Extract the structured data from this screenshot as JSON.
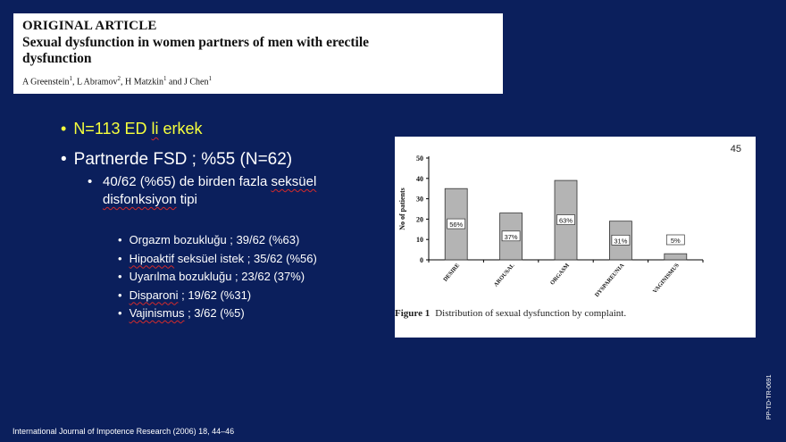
{
  "header": {
    "kicker": "ORIGINAL ARTICLE",
    "title_line1": "Sexual dysfunction in women partners of men with erectile",
    "title_line2": "dysfunction",
    "authors_html": "A Greenstein<sup>1</sup>, L Abramov<sup>2</sup>, H Matzkin<sup>1</sup> and J Chen<sup>1</sup>"
  },
  "bullets": {
    "b1_pre": "N=113 ED ",
    "b1_squig": "li",
    "b1_post": " erkek",
    "b2": "Partnerde FSD ; %55 (N=62)",
    "b3_pre": "40/62 (%65) de birden fazla ",
    "b3_squig1": "seksüel",
    "b3_squig2": "disfonksiyon",
    "b3_post": " tipi",
    "subitems": [
      {
        "squig": "",
        "text": "Orgazm bozukluğu ; 39/62 (%63)"
      },
      {
        "squig": "Hipoaktif",
        "text": " seksüel istek ; 35/62 (%56)"
      },
      {
        "squig": "",
        "text": "Uyarılma bozukluğu ; 23/62 (37%)"
      },
      {
        "squig": "Disparoni",
        "text": " ; 19/62 (%31)"
      },
      {
        "squig": "Vajinismus",
        "text": " ; 3/62 (%5)"
      }
    ]
  },
  "figure": {
    "page_number": "45",
    "caption_label": "Figure 1",
    "caption_text": "Distribution of sexual dysfunction by complaint."
  },
  "chart_data": {
    "type": "bar",
    "categories": [
      "DESIRE",
      "AROUSAL",
      "ORGASM",
      "DYSPAREUNIA",
      "VAGINISMUS"
    ],
    "values": [
      35,
      23,
      39,
      19,
      3
    ],
    "data_labels": [
      "56%",
      "37%",
      "63%",
      "31%",
      "5%"
    ],
    "ylabel": "No of patients",
    "ylim": [
      0,
      50
    ],
    "yticks": [
      0,
      10,
      20,
      30,
      40,
      50
    ],
    "bar_color": "#b4b4b4"
  },
  "footer": "International Journal of Impotence Research (2006) 18, 44–46",
  "side_code": "PP-TD-TR-0691"
}
